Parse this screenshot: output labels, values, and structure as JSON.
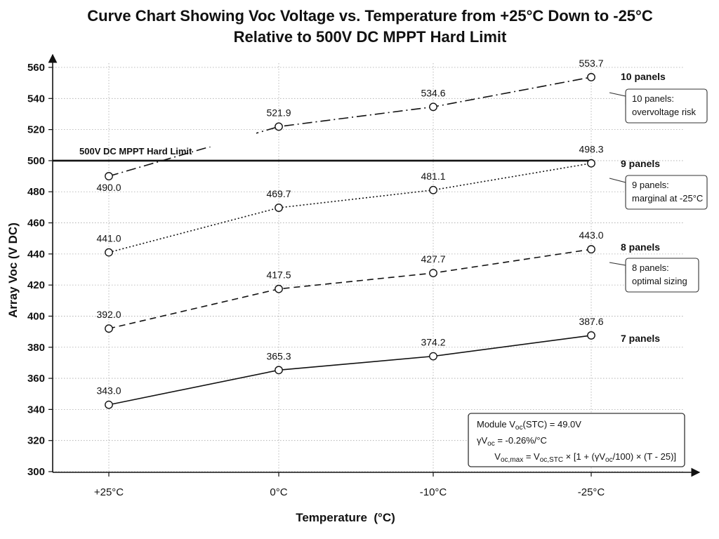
{
  "chart_data": {
    "type": "line",
    "title_lines": [
      "Curve Chart Showing Voc Voltage vs. Temperature from +25°C Down to -25°C",
      "Relative to 500V DC MPPT Hard Limit"
    ],
    "xlabel": "Temperature  (°C)",
    "ylabel": "Array Voc (V DC)",
    "categories": [
      "+25°C",
      "0°C",
      "-10°C",
      "-25°C"
    ],
    "x_temps": [
      25,
      0,
      -10,
      -25
    ],
    "ylim": [
      300,
      560
    ],
    "yticks": [
      300,
      320,
      340,
      360,
      380,
      400,
      420,
      440,
      460,
      480,
      500,
      520,
      540,
      560
    ],
    "grid": true,
    "series": [
      {
        "name": "7 panels",
        "line_style": "solid",
        "values": [
          343.0,
          365.3,
          374.2,
          387.6
        ],
        "labels": [
          "343.0",
          "365.3",
          "374.2",
          "387.6"
        ]
      },
      {
        "name": "8 panels",
        "line_style": "dashed",
        "values": [
          392.0,
          417.5,
          427.7,
          443.0
        ],
        "labels": [
          "392.0",
          "417.5",
          "427.7",
          "443.0"
        ],
        "callout": [
          "8 panels:",
          "optimal sizing"
        ]
      },
      {
        "name": "9 panels",
        "line_style": "dotted",
        "values": [
          441.0,
          469.7,
          481.1,
          498.3
        ],
        "labels": [
          "441.0",
          "469.7",
          "481.1",
          "498.3"
        ],
        "callout": [
          "9 panels:",
          "marginal at -25°C"
        ]
      },
      {
        "name": "10 panels",
        "line_style": "dashdot",
        "values": [
          490.0,
          521.9,
          534.6,
          553.7
        ],
        "labels": [
          "490.0",
          "521.9",
          "534.6",
          "553.7"
        ],
        "callout": [
          "10 panels:",
          "overvoltage risk"
        ]
      }
    ],
    "reference_line": {
      "value": 500,
      "label": "500V DC MPPT Hard Limit"
    },
    "formula_box": {
      "line1": {
        "pre": "Module V",
        "sub": "oc",
        "post": "(STC) = 49.0V"
      },
      "line2": {
        "pre": "γV",
        "sub": "oc",
        "post": " = -0.26%/°C"
      },
      "line3": {
        "a": "V",
        "a_sub": "oc,max",
        "b": " = V",
        "b_sub": "oc,STC",
        "c": " × [1 + (γV",
        "c_sub": "oc",
        "d": "/100) × (T - 25)]"
      }
    }
  }
}
